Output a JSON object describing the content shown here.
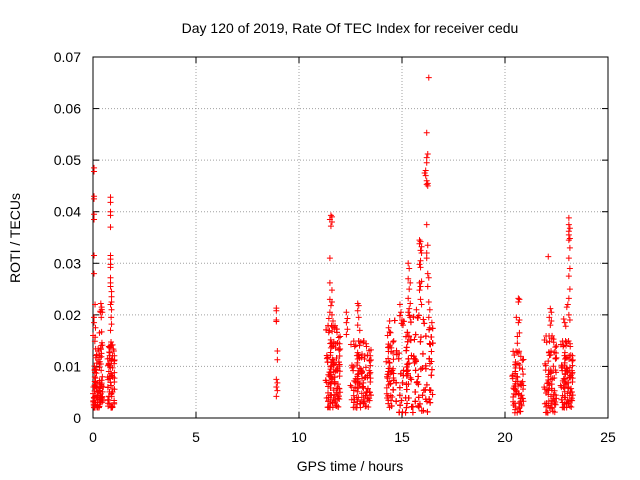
{
  "chart_data": {
    "type": "scatter",
    "title": "Day 120 of 2019, Rate Of TEC Index for receiver cedu",
    "xlabel": "GPS time / hours",
    "ylabel": "ROTI / TECUs",
    "xlim": [
      0,
      25
    ],
    "ylim": [
      0,
      0.07
    ],
    "xticks": [
      0,
      5,
      10,
      15,
      20,
      25
    ],
    "xtick_labels": [
      "0",
      "5",
      "10",
      "15",
      "20",
      "25"
    ],
    "yticks": [
      0,
      0.01,
      0.02,
      0.03,
      0.04,
      0.05,
      0.06,
      0.07
    ],
    "ytick_labels": [
      "0",
      "0.01",
      "0.02",
      "0.03",
      "0.04",
      "0.05",
      "0.06",
      "0.07"
    ],
    "grid": true,
    "marker": "plus",
    "color": "#ff0000",
    "clusters": [
      {
        "x_start": 0.0,
        "x_end": 0.35,
        "y_min": 0.002,
        "y_max": 0.016,
        "n": 70
      },
      {
        "x_start": 0.3,
        "x_end": 0.5,
        "y_min": 0.003,
        "y_max": 0.022,
        "n": 40
      },
      {
        "x_start": 0.7,
        "x_end": 1.05,
        "y_min": 0.002,
        "y_max": 0.015,
        "n": 70
      },
      {
        "x_start": 11.3,
        "x_end": 12.0,
        "y_min": 0.002,
        "y_max": 0.018,
        "n": 150
      },
      {
        "x_start": 12.5,
        "x_end": 13.5,
        "y_min": 0.002,
        "y_max": 0.015,
        "n": 120
      },
      {
        "x_start": 14.2,
        "x_end": 14.6,
        "y_min": 0.002,
        "y_max": 0.017,
        "n": 50
      },
      {
        "x_start": 14.6,
        "x_end": 16.5,
        "y_min": 0.001,
        "y_max": 0.02,
        "n": 260
      },
      {
        "x_start": 20.3,
        "x_end": 20.9,
        "y_min": 0.001,
        "y_max": 0.013,
        "n": 70
      },
      {
        "x_start": 21.9,
        "x_end": 22.5,
        "y_min": 0.001,
        "y_max": 0.016,
        "n": 80
      },
      {
        "x_start": 22.7,
        "x_end": 23.3,
        "y_min": 0.002,
        "y_max": 0.015,
        "n": 90
      }
    ],
    "points": [
      [
        0.05,
        0.0485
      ],
      [
        0.05,
        0.0478
      ],
      [
        0.05,
        0.043
      ],
      [
        0.05,
        0.0425
      ],
      [
        0.05,
        0.0395
      ],
      [
        0.05,
        0.0385
      ],
      [
        0.05,
        0.0315
      ],
      [
        0.05,
        0.028
      ],
      [
        0.05,
        0.0195
      ],
      [
        0.05,
        0.0185
      ],
      [
        0.1,
        0.022
      ],
      [
        0.12,
        0.0175
      ],
      [
        0.38,
        0.0222
      ],
      [
        0.42,
        0.0215
      ],
      [
        0.45,
        0.0205
      ],
      [
        0.4,
        0.0195
      ],
      [
        0.85,
        0.0428
      ],
      [
        0.85,
        0.0418
      ],
      [
        0.85,
        0.04
      ],
      [
        0.85,
        0.0393
      ],
      [
        0.85,
        0.037
      ],
      [
        0.85,
        0.0315
      ],
      [
        0.85,
        0.0308
      ],
      [
        0.85,
        0.0298
      ],
      [
        0.85,
        0.0292
      ],
      [
        0.85,
        0.0272
      ],
      [
        0.85,
        0.0262
      ],
      [
        0.85,
        0.0255
      ],
      [
        0.9,
        0.0245
      ],
      [
        0.9,
        0.0235
      ],
      [
        0.9,
        0.0225
      ],
      [
        0.85,
        0.022
      ],
      [
        0.9,
        0.021
      ],
      [
        0.88,
        0.0195
      ],
      [
        0.9,
        0.0182
      ],
      [
        0.85,
        0.017
      ],
      [
        8.9,
        0.0213
      ],
      [
        8.9,
        0.0208
      ],
      [
        8.9,
        0.019
      ],
      [
        8.9,
        0.0187
      ],
      [
        8.95,
        0.013
      ],
      [
        8.95,
        0.0113
      ],
      [
        8.9,
        0.0075
      ],
      [
        8.95,
        0.0068
      ],
      [
        8.9,
        0.006
      ],
      [
        8.95,
        0.0053
      ],
      [
        8.9,
        0.0042
      ],
      [
        11.55,
        0.0393
      ],
      [
        11.6,
        0.039
      ],
      [
        11.5,
        0.0385
      ],
      [
        11.6,
        0.038
      ],
      [
        11.55,
        0.0372
      ],
      [
        11.5,
        0.031
      ],
      [
        11.5,
        0.0262
      ],
      [
        11.6,
        0.0248
      ],
      [
        11.5,
        0.023
      ],
      [
        11.6,
        0.0225
      ],
      [
        11.55,
        0.0218
      ],
      [
        11.5,
        0.0205
      ],
      [
        11.6,
        0.02
      ],
      [
        11.45,
        0.0193
      ],
      [
        11.65,
        0.0188
      ],
      [
        12.3,
        0.0205
      ],
      [
        12.35,
        0.0193
      ],
      [
        12.3,
        0.0185
      ],
      [
        12.35,
        0.0172
      ],
      [
        12.3,
        0.0162
      ],
      [
        12.85,
        0.0222
      ],
      [
        12.9,
        0.0218
      ],
      [
        12.85,
        0.0208
      ],
      [
        12.9,
        0.0195
      ],
      [
        12.85,
        0.018
      ],
      [
        12.95,
        0.017
      ],
      [
        14.4,
        0.0188
      ],
      [
        14.35,
        0.0175
      ],
      [
        14.9,
        0.022
      ],
      [
        14.95,
        0.0205
      ],
      [
        15.0,
        0.019
      ],
      [
        15.05,
        0.018
      ],
      [
        15.3,
        0.03
      ],
      [
        15.35,
        0.029
      ],
      [
        15.3,
        0.027
      ],
      [
        15.4,
        0.0262
      ],
      [
        15.35,
        0.025
      ],
      [
        15.3,
        0.0232
      ],
      [
        15.4,
        0.0222
      ],
      [
        15.35,
        0.0212
      ],
      [
        15.3,
        0.0205
      ],
      [
        15.4,
        0.0195
      ],
      [
        15.7,
        0.021
      ],
      [
        15.75,
        0.0195
      ],
      [
        15.85,
        0.0345
      ],
      [
        15.9,
        0.0342
      ],
      [
        15.85,
        0.0338
      ],
      [
        15.95,
        0.0332
      ],
      [
        15.9,
        0.0325
      ],
      [
        15.95,
        0.032
      ],
      [
        15.9,
        0.0305
      ],
      [
        15.85,
        0.0298
      ],
      [
        15.9,
        0.0292
      ],
      [
        15.95,
        0.0265
      ],
      [
        15.85,
        0.0262
      ],
      [
        15.9,
        0.0255
      ],
      [
        15.85,
        0.0248
      ],
      [
        15.9,
        0.023
      ],
      [
        15.95,
        0.022
      ],
      [
        16.3,
        0.066
      ],
      [
        16.2,
        0.0553
      ],
      [
        16.25,
        0.0512
      ],
      [
        16.2,
        0.0505
      ],
      [
        16.2,
        0.0495
      ],
      [
        16.15,
        0.048
      ],
      [
        16.1,
        0.0475
      ],
      [
        16.15,
        0.047
      ],
      [
        16.2,
        0.046
      ],
      [
        16.25,
        0.0455
      ],
      [
        16.2,
        0.0453
      ],
      [
        16.25,
        0.045
      ],
      [
        16.2,
        0.0375
      ],
      [
        16.25,
        0.0335
      ],
      [
        16.2,
        0.032
      ],
      [
        16.2,
        0.031
      ],
      [
        16.25,
        0.028
      ],
      [
        16.3,
        0.0272
      ],
      [
        16.25,
        0.0255
      ],
      [
        16.3,
        0.0225
      ],
      [
        16.35,
        0.021
      ],
      [
        16.3,
        0.0195
      ],
      [
        16.45,
        0.0185
      ],
      [
        16.35,
        0.0175
      ],
      [
        20.55,
        0.0195
      ],
      [
        20.6,
        0.0145
      ],
      [
        20.65,
        0.0232
      ],
      [
        20.7,
        0.023
      ],
      [
        20.65,
        0.0225
      ],
      [
        20.7,
        0.019
      ],
      [
        20.65,
        0.0185
      ],
      [
        20.7,
        0.0165
      ],
      [
        20.6,
        0.0158
      ],
      [
        22.1,
        0.0313
      ],
      [
        22.2,
        0.0212
      ],
      [
        22.25,
        0.0205
      ],
      [
        22.15,
        0.0195
      ],
      [
        22.25,
        0.0188
      ],
      [
        22.2,
        0.018
      ],
      [
        22.85,
        0.0192
      ],
      [
        22.9,
        0.0185
      ],
      [
        22.95,
        0.0178
      ],
      [
        23.1,
        0.0388
      ],
      [
        23.1,
        0.0375
      ],
      [
        23.15,
        0.0368
      ],
      [
        23.1,
        0.0362
      ],
      [
        23.1,
        0.0355
      ],
      [
        23.15,
        0.0348
      ],
      [
        23.1,
        0.0345
      ],
      [
        23.15,
        0.033
      ],
      [
        23.1,
        0.031
      ],
      [
        23.15,
        0.029
      ],
      [
        23.1,
        0.0275
      ],
      [
        23.15,
        0.025
      ],
      [
        23.1,
        0.0232
      ],
      [
        23.05,
        0.022
      ],
      [
        23.0,
        0.0215
      ],
      [
        23.1,
        0.02
      ],
      [
        23.15,
        0.019
      ]
    ]
  }
}
